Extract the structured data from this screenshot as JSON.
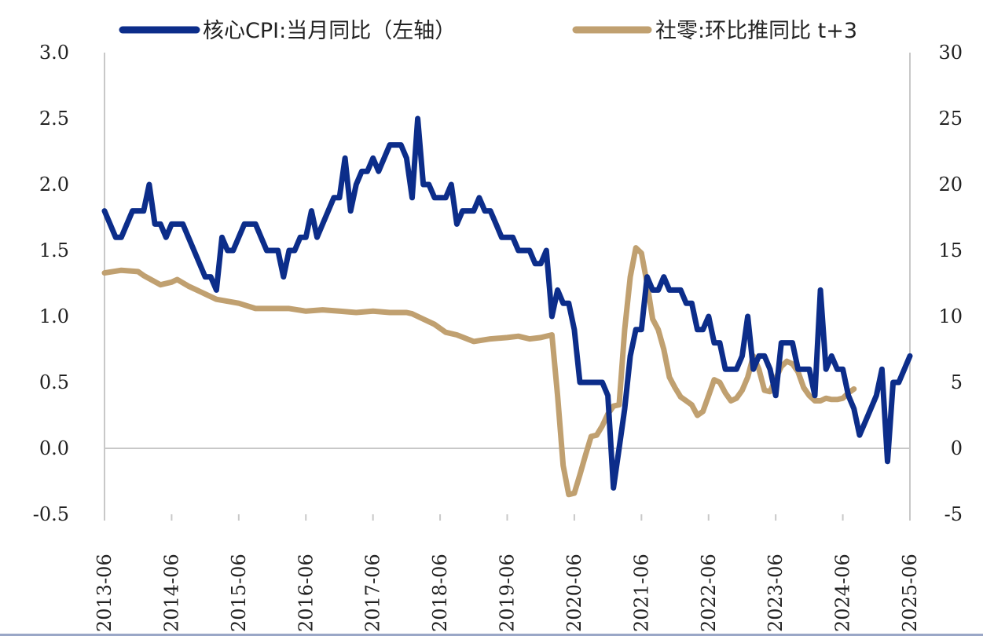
{
  "chart_data": {
    "type": "line",
    "title": "",
    "xlabel": "",
    "ylabel": "",
    "x_ticks": [
      "2013-06",
      "2014-06",
      "2015-06",
      "2016-06",
      "2017-06",
      "2018-06",
      "2019-06",
      "2020-06",
      "2021-06",
      "2022-06",
      "2023-06",
      "2024-06",
      "2025-06"
    ],
    "x_range": [
      "2013-06",
      "2025-06"
    ],
    "y_left": {
      "range": [
        -0.5,
        3.0
      ],
      "ticks": [
        "-0.5",
        "0.0",
        "0.5",
        "1.0",
        "1.5",
        "2.0",
        "2.5",
        "3.0"
      ]
    },
    "y_right": {
      "range": [
        -5,
        30
      ],
      "ticks": [
        "-5",
        "0",
        "5",
        "10",
        "15",
        "20",
        "25",
        "30"
      ]
    },
    "zero_line": true,
    "grid": false,
    "legend_position": "top",
    "series": [
      {
        "name": "核心CPI:当月同比（左轴）",
        "axis": "left",
        "color": "#0c2d8a",
        "points": [
          [
            "2013-06",
            1.8
          ],
          [
            "2013-07",
            1.7
          ],
          [
            "2013-08",
            1.6
          ],
          [
            "2013-09",
            1.6
          ],
          [
            "2013-10",
            1.7
          ],
          [
            "2013-11",
            1.8
          ],
          [
            "2013-12",
            1.8
          ],
          [
            "2014-01",
            1.8
          ],
          [
            "2014-02",
            2.0
          ],
          [
            "2014-03",
            1.7
          ],
          [
            "2014-04",
            1.7
          ],
          [
            "2014-05",
            1.6
          ],
          [
            "2014-06",
            1.7
          ],
          [
            "2014-07",
            1.7
          ],
          [
            "2014-08",
            1.7
          ],
          [
            "2014-09",
            1.6
          ],
          [
            "2014-10",
            1.5
          ],
          [
            "2014-11",
            1.4
          ],
          [
            "2014-12",
            1.3
          ],
          [
            "2015-01",
            1.3
          ],
          [
            "2015-02",
            1.2
          ],
          [
            "2015-03",
            1.6
          ],
          [
            "2015-04",
            1.5
          ],
          [
            "2015-05",
            1.5
          ],
          [
            "2015-06",
            1.6
          ],
          [
            "2015-07",
            1.7
          ],
          [
            "2015-08",
            1.7
          ],
          [
            "2015-09",
            1.7
          ],
          [
            "2015-10",
            1.6
          ],
          [
            "2015-11",
            1.5
          ],
          [
            "2015-12",
            1.5
          ],
          [
            "2016-01",
            1.5
          ],
          [
            "2016-02",
            1.3
          ],
          [
            "2016-03",
            1.5
          ],
          [
            "2016-04",
            1.5
          ],
          [
            "2016-05",
            1.6
          ],
          [
            "2016-06",
            1.6
          ],
          [
            "2016-07",
            1.8
          ],
          [
            "2016-08",
            1.6
          ],
          [
            "2016-09",
            1.7
          ],
          [
            "2016-10",
            1.8
          ],
          [
            "2016-11",
            1.9
          ],
          [
            "2016-12",
            1.9
          ],
          [
            "2017-01",
            2.2
          ],
          [
            "2017-02",
            1.8
          ],
          [
            "2017-03",
            2.0
          ],
          [
            "2017-04",
            2.1
          ],
          [
            "2017-05",
            2.1
          ],
          [
            "2017-06",
            2.2
          ],
          [
            "2017-07",
            2.1
          ],
          [
            "2017-08",
            2.2
          ],
          [
            "2017-09",
            2.3
          ],
          [
            "2017-10",
            2.3
          ],
          [
            "2017-11",
            2.3
          ],
          [
            "2017-12",
            2.2
          ],
          [
            "2018-01",
            1.9
          ],
          [
            "2018-02",
            2.5
          ],
          [
            "2018-03",
            2.0
          ],
          [
            "2018-04",
            2.0
          ],
          [
            "2018-05",
            1.9
          ],
          [
            "2018-06",
            1.9
          ],
          [
            "2018-07",
            1.9
          ],
          [
            "2018-08",
            2.0
          ],
          [
            "2018-09",
            1.7
          ],
          [
            "2018-10",
            1.8
          ],
          [
            "2018-11",
            1.8
          ],
          [
            "2018-12",
            1.8
          ],
          [
            "2019-01",
            1.9
          ],
          [
            "2019-02",
            1.8
          ],
          [
            "2019-03",
            1.8
          ],
          [
            "2019-04",
            1.7
          ],
          [
            "2019-05",
            1.6
          ],
          [
            "2019-06",
            1.6
          ],
          [
            "2019-07",
            1.6
          ],
          [
            "2019-08",
            1.5
          ],
          [
            "2019-09",
            1.5
          ],
          [
            "2019-10",
            1.5
          ],
          [
            "2019-11",
            1.4
          ],
          [
            "2019-12",
            1.4
          ],
          [
            "2020-01",
            1.5
          ],
          [
            "2020-02",
            1.0
          ],
          [
            "2020-03",
            1.2
          ],
          [
            "2020-04",
            1.1
          ],
          [
            "2020-05",
            1.1
          ],
          [
            "2020-06",
            0.9
          ],
          [
            "2020-07",
            0.5
          ],
          [
            "2020-08",
            0.5
          ],
          [
            "2020-09",
            0.5
          ],
          [
            "2020-10",
            0.5
          ],
          [
            "2020-11",
            0.5
          ],
          [
            "2020-12",
            0.4
          ],
          [
            "2021-01",
            -0.3
          ],
          [
            "2021-02",
            0.0
          ],
          [
            "2021-03",
            0.3
          ],
          [
            "2021-04",
            0.7
          ],
          [
            "2021-05",
            0.9
          ],
          [
            "2021-06",
            0.9
          ],
          [
            "2021-07",
            1.3
          ],
          [
            "2021-08",
            1.2
          ],
          [
            "2021-09",
            1.2
          ],
          [
            "2021-10",
            1.3
          ],
          [
            "2021-11",
            1.2
          ],
          [
            "2021-12",
            1.2
          ],
          [
            "2022-01",
            1.2
          ],
          [
            "2022-02",
            1.1
          ],
          [
            "2022-03",
            1.1
          ],
          [
            "2022-04",
            0.9
          ],
          [
            "2022-05",
            0.9
          ],
          [
            "2022-06",
            1.0
          ],
          [
            "2022-07",
            0.8
          ],
          [
            "2022-08",
            0.8
          ],
          [
            "2022-09",
            0.6
          ],
          [
            "2022-10",
            0.6
          ],
          [
            "2022-11",
            0.6
          ],
          [
            "2022-12",
            0.7
          ],
          [
            "2023-01",
            1.0
          ],
          [
            "2023-02",
            0.6
          ],
          [
            "2023-03",
            0.7
          ],
          [
            "2023-04",
            0.7
          ],
          [
            "2023-05",
            0.6
          ],
          [
            "2023-06",
            0.4
          ],
          [
            "2023-07",
            0.8
          ],
          [
            "2023-08",
            0.8
          ],
          [
            "2023-09",
            0.8
          ],
          [
            "2023-10",
            0.6
          ],
          [
            "2023-11",
            0.6
          ],
          [
            "2023-12",
            0.6
          ],
          [
            "2024-01",
            0.4
          ],
          [
            "2024-02",
            1.2
          ],
          [
            "2024-03",
            0.6
          ],
          [
            "2024-04",
            0.7
          ],
          [
            "2024-05",
            0.6
          ],
          [
            "2024-06",
            0.6
          ],
          [
            "2024-07",
            0.4
          ],
          [
            "2024-08",
            0.3
          ],
          [
            "2024-09",
            0.1
          ],
          [
            "2024-10",
            0.2
          ],
          [
            "2024-11",
            0.3
          ],
          [
            "2024-12",
            0.4
          ],
          [
            "2025-01",
            0.6
          ],
          [
            "2025-02",
            -0.1
          ],
          [
            "2025-03",
            0.5
          ],
          [
            "2025-04",
            0.5
          ],
          [
            "2025-05",
            0.6
          ],
          [
            "2025-06",
            0.7
          ]
        ]
      },
      {
        "name": "社零:环比推同比 t+3",
        "axis": "right",
        "color": "#c0a070",
        "points": [
          [
            "2013-06",
            13.3
          ],
          [
            "2013-09",
            13.5
          ],
          [
            "2013-12",
            13.4
          ],
          [
            "2014-01",
            13.1
          ],
          [
            "2014-04",
            12.4
          ],
          [
            "2014-06",
            12.6
          ],
          [
            "2014-07",
            12.8
          ],
          [
            "2014-09",
            12.3
          ],
          [
            "2014-12",
            11.7
          ],
          [
            "2015-02",
            11.3
          ],
          [
            "2015-06",
            11.0
          ],
          [
            "2015-09",
            10.6
          ],
          [
            "2015-12",
            10.6
          ],
          [
            "2016-03",
            10.6
          ],
          [
            "2016-06",
            10.4
          ],
          [
            "2016-09",
            10.5
          ],
          [
            "2016-12",
            10.4
          ],
          [
            "2017-03",
            10.3
          ],
          [
            "2017-06",
            10.4
          ],
          [
            "2017-09",
            10.3
          ],
          [
            "2017-12",
            10.3
          ],
          [
            "2018-01",
            10.2
          ],
          [
            "2018-03",
            9.8
          ],
          [
            "2018-05",
            9.4
          ],
          [
            "2018-07",
            8.8
          ],
          [
            "2018-09",
            8.6
          ],
          [
            "2018-12",
            8.1
          ],
          [
            "2019-03",
            8.3
          ],
          [
            "2019-06",
            8.4
          ],
          [
            "2019-08",
            8.5
          ],
          [
            "2019-10",
            8.3
          ],
          [
            "2019-12",
            8.4
          ],
          [
            "2020-02",
            8.6
          ],
          [
            "2020-03",
            4.0
          ],
          [
            "2020-04",
            -1.3
          ],
          [
            "2020-05",
            -3.5
          ],
          [
            "2020-06",
            -3.4
          ],
          [
            "2020-07",
            -2.0
          ],
          [
            "2020-08",
            -0.5
          ],
          [
            "2020-09",
            0.9
          ],
          [
            "2020-10",
            1.0
          ],
          [
            "2020-11",
            1.7
          ],
          [
            "2020-12",
            2.6
          ],
          [
            "2021-01",
            3.2
          ],
          [
            "2021-02",
            3.3
          ],
          [
            "2021-03",
            9.0
          ],
          [
            "2021-04",
            13.0
          ],
          [
            "2021-05",
            15.2
          ],
          [
            "2021-06",
            14.8
          ],
          [
            "2021-07",
            12.5
          ],
          [
            "2021-08",
            9.8
          ],
          [
            "2021-09",
            9.0
          ],
          [
            "2021-10",
            7.5
          ],
          [
            "2021-11",
            5.4
          ],
          [
            "2021-12",
            4.6
          ],
          [
            "2022-01",
            3.9
          ],
          [
            "2022-02",
            3.6
          ],
          [
            "2022-03",
            3.3
          ],
          [
            "2022-04",
            2.5
          ],
          [
            "2022-05",
            2.8
          ],
          [
            "2022-06",
            4.0
          ],
          [
            "2022-07",
            5.2
          ],
          [
            "2022-08",
            5.0
          ],
          [
            "2022-09",
            4.2
          ],
          [
            "2022-10",
            3.6
          ],
          [
            "2022-11",
            3.8
          ],
          [
            "2022-12",
            4.4
          ],
          [
            "2023-01",
            5.4
          ],
          [
            "2023-02",
            7.0
          ],
          [
            "2023-03",
            6.0
          ],
          [
            "2023-04",
            4.4
          ],
          [
            "2023-05",
            4.3
          ],
          [
            "2023-06",
            5.3
          ],
          [
            "2023-07",
            6.2
          ],
          [
            "2023-08",
            6.6
          ],
          [
            "2023-09",
            6.4
          ],
          [
            "2023-10",
            5.8
          ],
          [
            "2023-11",
            4.6
          ],
          [
            "2023-12",
            4.0
          ],
          [
            "2024-01",
            3.6
          ],
          [
            "2024-02",
            3.6
          ],
          [
            "2024-03",
            3.8
          ],
          [
            "2024-04",
            3.7
          ],
          [
            "2024-05",
            3.7
          ],
          [
            "2024-06",
            3.8
          ],
          [
            "2024-07",
            4.2
          ],
          [
            "2024-08",
            4.5
          ]
        ]
      }
    ]
  }
}
